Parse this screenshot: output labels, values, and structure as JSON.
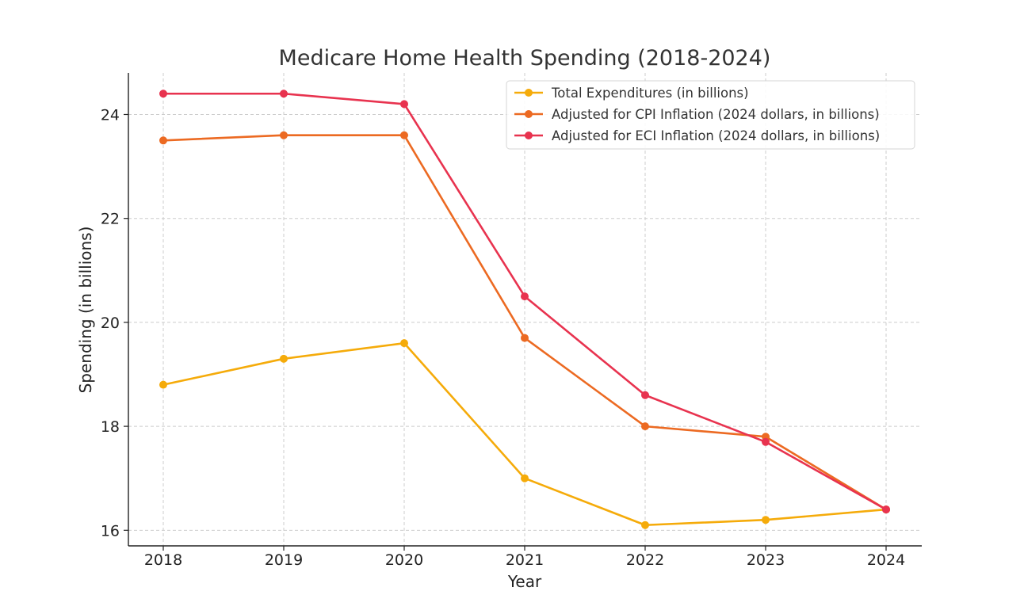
{
  "chart_data": {
    "type": "line",
    "title": "Medicare Home Health Spending (2018-2024)",
    "xlabel": "Year",
    "ylabel": "Spending (in billions)",
    "categories": [
      "2018",
      "2019",
      "2020",
      "2021",
      "2022",
      "2023",
      "2024"
    ],
    "yticks": [
      16,
      18,
      20,
      22,
      24
    ],
    "ylim": [
      15.7,
      24.8
    ],
    "grid": true,
    "legend_position": "top-right",
    "series": [
      {
        "name": "Total Expenditures (in billions)",
        "color": "#f5ab0a",
        "values": [
          18.8,
          19.3,
          19.6,
          17.0,
          16.1,
          16.2,
          16.4
        ]
      },
      {
        "name": "Adjusted for CPI Inflation (2024 dollars, in billions)",
        "color": "#ec6a22",
        "values": [
          23.5,
          23.6,
          23.6,
          19.7,
          18.0,
          17.8,
          16.4
        ]
      },
      {
        "name": "Adjusted for ECI Inflation (2024 dollars, in billions)",
        "color": "#e8334f",
        "values": [
          24.4,
          24.4,
          24.2,
          20.5,
          18.6,
          17.7,
          16.4
        ]
      }
    ]
  }
}
